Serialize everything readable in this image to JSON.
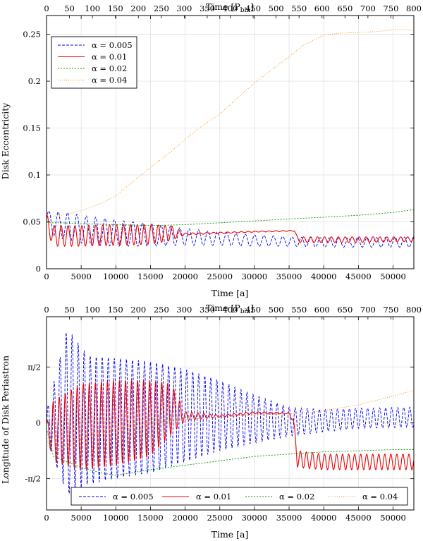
{
  "chart_data": [
    {
      "type": "line",
      "xlabel": "Time [a]",
      "x2label": "Time [P",
      "x2label_sub": "bin",
      "x2label_end": "]",
      "ylabel": "Disk Eccentricity",
      "xlim": [
        0,
        53000
      ],
      "x2lim": [
        0,
        800
      ],
      "ylim": [
        0,
        0.27
      ],
      "xticks": [
        0,
        5000,
        10000,
        15000,
        20000,
        25000,
        30000,
        35000,
        40000,
        45000,
        50000
      ],
      "x2ticks": [
        0,
        50,
        100,
        150,
        200,
        250,
        300,
        350,
        400,
        450,
        500,
        550,
        600,
        650,
        700,
        750,
        800
      ],
      "yticks": [
        0,
        0.05,
        0.1,
        0.15,
        0.2,
        0.25
      ],
      "ytick_labels": [
        "0",
        "0.05",
        "0.1",
        "0.15",
        "0.2",
        "0.25"
      ],
      "grid": true,
      "legend_position": "top-left",
      "series": [
        {
          "name": "α = 0.005",
          "alpha": "0.005",
          "color": "#0000ee",
          "dash": "4,2",
          "envelope": {
            "x": [
              0,
              1000,
              3000,
              6000,
              10000,
              15000,
              20000,
              25000,
              30000,
              35000,
              40000,
              45000,
              53000
            ],
            "upper": [
              0.062,
              0.061,
              0.06,
              0.056,
              0.052,
              0.048,
              0.043,
              0.039,
              0.036,
              0.034,
              0.033,
              0.033,
              0.034
            ],
            "lower": [
              0.045,
              0.035,
              0.03,
              0.026,
              0.024,
              0.024,
              0.025,
              0.025,
              0.024,
              0.024,
              0.023,
              0.023,
              0.023
            ]
          },
          "period": 1350
        },
        {
          "name": "α = 0.01",
          "alpha": "0.01",
          "color": "#ee0000",
          "dash": "",
          "envelope": {
            "x": [
              0,
              1000,
              5000,
              10000,
              15000,
              18000,
              20000,
              30000,
              35800,
              36200,
              45000,
              53000
            ],
            "upper": [
              0.058,
              0.046,
              0.046,
              0.047,
              0.047,
              0.046,
              0.038,
              0.04,
              0.041,
              0.034,
              0.034,
              0.034
            ],
            "lower": [
              0.04,
              0.024,
              0.024,
              0.025,
              0.026,
              0.03,
              0.036,
              0.039,
              0.04,
              0.028,
              0.028,
              0.029
            ]
          },
          "period": 1000
        },
        {
          "name": "α = 0.02",
          "alpha": "0.02",
          "color": "#009900",
          "dash": "2,2",
          "points": {
            "x": [
              0,
              500,
              2000,
              5000,
              10000,
              15000,
              20000,
              25000,
              30000,
              35000,
              40000,
              45000,
              50000,
              53000
            ],
            "y": [
              0.05,
              0.049,
              0.049,
              0.048,
              0.047,
              0.046,
              0.047,
              0.049,
              0.051,
              0.053,
              0.055,
              0.057,
              0.06,
              0.063
            ]
          }
        },
        {
          "name": "α = 0.04",
          "alpha": "0.04",
          "color": "#ff8800",
          "dash": "1,2",
          "points": {
            "x": [
              0,
              1000,
              3000,
              5000,
              8000,
              10000,
              12000,
              15000,
              18000,
              20000,
              22000,
              25000,
              28000,
              30000,
              33000,
              35000,
              37000,
              40000,
              42000,
              45000,
              48000,
              50000,
              52000,
              53000
            ],
            "y": [
              0.055,
              0.056,
              0.058,
              0.062,
              0.07,
              0.078,
              0.09,
              0.108,
              0.125,
              0.138,
              0.15,
              0.165,
              0.185,
              0.198,
              0.215,
              0.226,
              0.238,
              0.249,
              0.251,
              0.252,
              0.253,
              0.255,
              0.255,
              0.254
            ]
          }
        }
      ]
    },
    {
      "type": "line",
      "xlabel": "Time [a]",
      "x2label": "Time [P",
      "x2label_sub": "bin",
      "x2label_end": "]",
      "ylabel": "Longitude of Disk Periastron",
      "xlim": [
        0,
        53000
      ],
      "x2lim": [
        0,
        800
      ],
      "ylim": [
        -0.78,
        0.95
      ],
      "xticks": [
        0,
        5000,
        10000,
        15000,
        20000,
        25000,
        30000,
        35000,
        40000,
        45000,
        50000
      ],
      "x2ticks": [
        0,
        50,
        100,
        150,
        200,
        250,
        300,
        350,
        400,
        450,
        500,
        550,
        600,
        650,
        700,
        750,
        800
      ],
      "yticks": [
        -0.5,
        0,
        0.5
      ],
      "ytick_labels": [
        "-π/2",
        "0",
        "π/2"
      ],
      "grid": true,
      "legend_position": "bottom",
      "series": [
        {
          "name": "α = 0.005",
          "alpha": "0.005",
          "color": "#0000ee",
          "dash": "4,2",
          "envelope": {
            "x": [
              0,
              3000,
              6000,
              10000,
              15000,
              20000,
              25000,
              30000,
              35000,
              40000,
              45000,
              53000
            ],
            "upper": [
              0.1,
              0.85,
              0.6,
              0.58,
              0.55,
              0.48,
              0.38,
              0.25,
              0.14,
              0.12,
              0.13,
              0.14
            ],
            "lower": [
              -0.15,
              -0.65,
              -0.55,
              -0.5,
              -0.45,
              -0.35,
              -0.25,
              -0.18,
              -0.12,
              -0.08,
              -0.05,
              -0.04
            ]
          },
          "period": 870
        },
        {
          "name": "α = 0.01",
          "alpha": "0.01",
          "color": "#ee0000",
          "dash": "",
          "envelope": {
            "x": [
              0,
              1000,
              5000,
              10000,
              15000,
              18000,
              20000,
              25000,
              30000,
              35000,
              35600,
              36200,
              40000,
              45000,
              53000
            ],
            "upper": [
              0.0,
              0.2,
              0.35,
              0.38,
              0.38,
              0.35,
              0.1,
              0.07,
              0.1,
              0.09,
              0.05,
              -0.25,
              -0.28,
              -0.28,
              -0.28
            ],
            "lower": [
              -0.1,
              -0.35,
              -0.42,
              -0.38,
              -0.3,
              -0.1,
              0.02,
              0.05,
              0.08,
              0.08,
              0.0,
              -0.4,
              -0.42,
              -0.42,
              -0.42
            ]
          },
          "period": 870
        },
        {
          "name": "α = 0.02",
          "alpha": "0.02",
          "color": "#009900",
          "dash": "2,2",
          "points": {
            "x": [
              0,
              1000,
              3000,
              5000,
              8000,
              10000,
              12000,
              15000,
              20000,
              25000,
              30000,
              35000,
              40000,
              45000,
              50000,
              53000
            ],
            "y": [
              -0.05,
              -0.3,
              -0.35,
              -0.4,
              -0.45,
              -0.47,
              -0.45,
              -0.42,
              -0.38,
              -0.34,
              -0.3,
              -0.28,
              -0.26,
              -0.25,
              -0.24,
              -0.24
            ]
          }
        },
        {
          "name": "α = 0.04",
          "alpha": "0.04",
          "color": "#ff8800",
          "dash": "1,2",
          "points": {
            "x": [
              0,
              1000,
              3000,
              6000,
              10000,
              15000,
              20000,
              25000,
              30000,
              35000,
              38000,
              40000,
              45000,
              50000,
              53000
            ],
            "y": [
              -0.15,
              -0.25,
              -0.2,
              -0.12,
              -0.05,
              0.0,
              0.03,
              0.05,
              0.07,
              0.08,
              0.09,
              0.11,
              0.16,
              0.24,
              0.29
            ]
          }
        }
      ]
    }
  ]
}
